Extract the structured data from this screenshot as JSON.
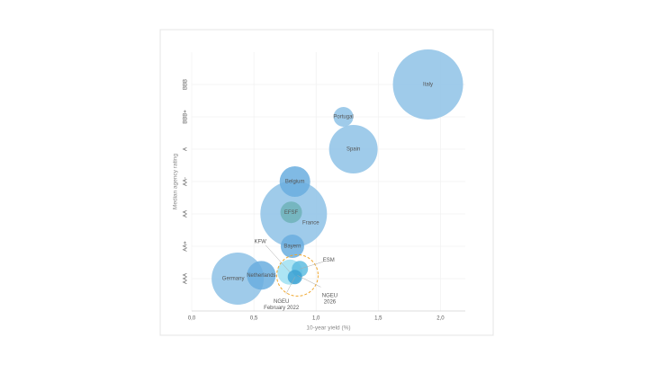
{
  "chart_data": {
    "type": "bubble",
    "x_label": "10-year yield (%)",
    "y_label": "Median agency rating",
    "xlim": [
      0,
      2.2
    ],
    "xticks": [
      {
        "value": 0,
        "label": "0,0"
      },
      {
        "value": 0.5,
        "label": "0,5"
      },
      {
        "value": 1,
        "label": "1,0"
      },
      {
        "value": 1.5,
        "label": "1,5"
      },
      {
        "value": 2,
        "label": "2,0"
      }
    ],
    "ylim": [
      0,
      8
    ],
    "yticks": [
      {
        "value": 1,
        "label": "AAA"
      },
      {
        "value": 2,
        "label": "AA+"
      },
      {
        "value": 3,
        "label": "AA"
      },
      {
        "value": 4,
        "label": "AA-"
      },
      {
        "value": 5,
        "label": "A"
      },
      {
        "value": 6,
        "label": "BBB+"
      },
      {
        "value": 7,
        "label": "BBB"
      }
    ],
    "grid": true,
    "points": [
      {
        "name": "Italy",
        "x": 1.9,
        "y": 7,
        "size": 39,
        "color": "#8ec2e6"
      },
      {
        "name": "Spain",
        "x": 1.3,
        "y": 5,
        "size": 27,
        "color": "#8ec2e6"
      },
      {
        "name": "France",
        "x": 0.82,
        "y": 3,
        "size": 37,
        "color": "#8ec2e6"
      },
      {
        "name": "Germany",
        "x": 0.37,
        "y": 1,
        "size": 29,
        "color": "#8ec2e6"
      },
      {
        "name": "Portugal",
        "x": 1.22,
        "y": 6,
        "size": 11,
        "color": "#8ec2e6"
      },
      {
        "name": "Belgium",
        "x": 0.83,
        "y": 4,
        "size": 17,
        "color": "#6aaedf"
      },
      {
        "name": "Bayern",
        "x": 0.81,
        "y": 2,
        "size": 13,
        "color": "#6aaedf"
      },
      {
        "name": "Netherlands",
        "x": 0.56,
        "y": 1.1,
        "size": 16,
        "color": "#6aaedf"
      },
      {
        "name": "EFSF",
        "x": 0.8,
        "y": 3.05,
        "size": 12,
        "color": "#6fb3b8"
      },
      {
        "name": "KFW",
        "x": 0.79,
        "y": 1.2,
        "size": 14,
        "color": "#9fe0f2"
      },
      {
        "name": "ESM",
        "x": 0.87,
        "y": 1.3,
        "size": 9,
        "color": "#5fbde0"
      },
      {
        "name": "NGEU February 2022",
        "x": 0.83,
        "y": 1.05,
        "size": 8,
        "color": "#3ea3d4"
      },
      {
        "name": "NGEU 2026",
        "x": 0.85,
        "y": 1.1,
        "size": 23,
        "color": "#f0a830"
      }
    ]
  }
}
